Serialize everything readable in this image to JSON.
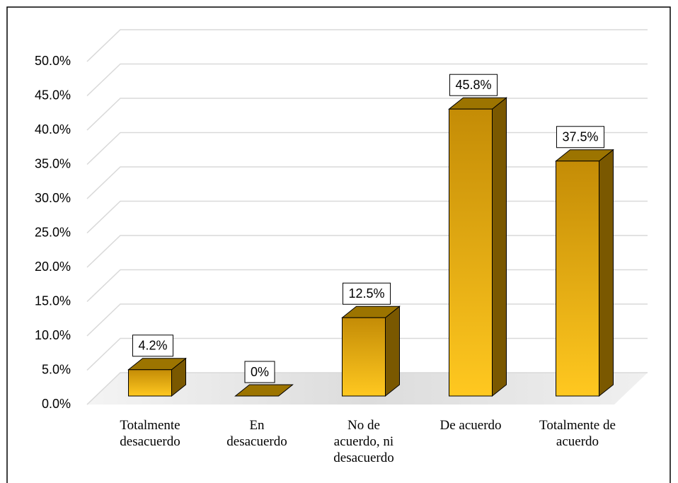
{
  "chart_data": {
    "type": "bar3d",
    "categories": [
      "Totalmente desacuerdo",
      "En desacuerdo",
      "No de acuerdo, ni desacuerdo",
      "De acuerdo",
      "Totalmente de acuerdo"
    ],
    "values": [
      4.2,
      0,
      12.5,
      45.8,
      37.5
    ],
    "value_labels": [
      "4.2%",
      "0%",
      "12.5%",
      "45.8%",
      "37.5%"
    ],
    "color": "#ffc414",
    "ylim": [
      0,
      50
    ],
    "yticks": [
      {
        "value": 0,
        "label": "0.0%"
      },
      {
        "value": 5,
        "label": "5.0%"
      },
      {
        "value": 10,
        "label": "10.0%"
      },
      {
        "value": 15,
        "label": "15.0%"
      },
      {
        "value": 20,
        "label": "20.0%"
      },
      {
        "value": 25,
        "label": "25.0%"
      },
      {
        "value": 30,
        "label": "30.0%"
      },
      {
        "value": 35,
        "label": "35.0%"
      },
      {
        "value": 40,
        "label": "40.0%"
      },
      {
        "value": 45,
        "label": "45.0%"
      },
      {
        "value": 50,
        "label": "50.0%"
      }
    ],
    "grid": true
  }
}
